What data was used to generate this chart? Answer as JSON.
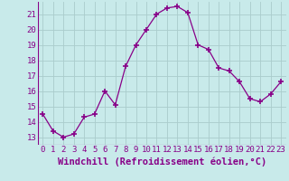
{
  "x": [
    0,
    1,
    2,
    3,
    4,
    5,
    6,
    7,
    8,
    9,
    10,
    11,
    12,
    13,
    14,
    15,
    16,
    17,
    18,
    19,
    20,
    21,
    22,
    23
  ],
  "y": [
    14.5,
    13.4,
    13.0,
    13.2,
    14.3,
    14.5,
    16.0,
    15.1,
    17.6,
    19.0,
    20.0,
    21.0,
    21.4,
    21.5,
    21.1,
    19.0,
    18.7,
    17.5,
    17.3,
    16.6,
    15.5,
    15.3,
    15.8,
    16.6
  ],
  "line_color": "#880088",
  "marker": "+",
  "marker_size": 4,
  "background_color": "#c8eaea",
  "grid_color": "#aacccc",
  "xlabel": "Windchill (Refroidissement éolien,°C)",
  "ylim": [
    12.5,
    21.8
  ],
  "xlim": [
    -0.5,
    23.5
  ],
  "yticks": [
    13,
    14,
    15,
    16,
    17,
    18,
    19,
    20,
    21
  ],
  "xticks": [
    0,
    1,
    2,
    3,
    4,
    5,
    6,
    7,
    8,
    9,
    10,
    11,
    12,
    13,
    14,
    15,
    16,
    17,
    18,
    19,
    20,
    21,
    22,
    23
  ],
  "tick_label_fontsize": 6.5,
  "xlabel_fontsize": 7.5
}
